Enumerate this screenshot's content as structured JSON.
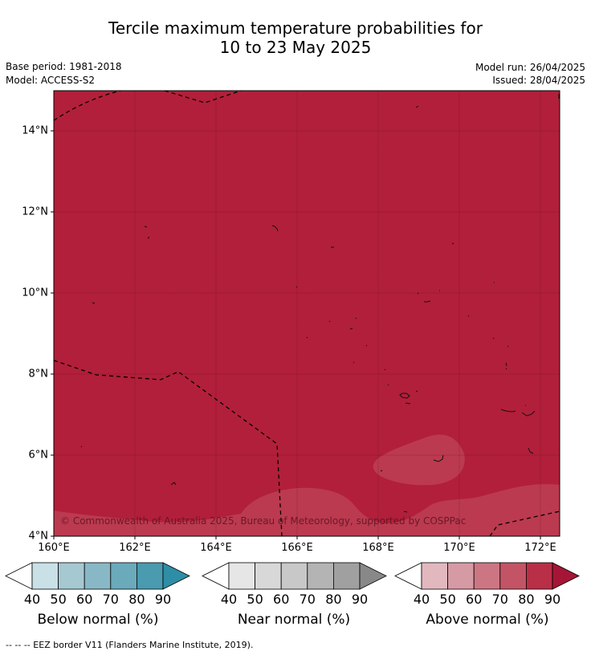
{
  "header": {
    "title_line1": "Tercile maximum temperature probabilities for",
    "title_line2": "10 to 23 May 2025",
    "base_period": "Base period: 1981-2018",
    "model": "Model: ACCESS-S2",
    "model_run": "Model run: 26/04/2025",
    "issued": "Issued: 28/04/2025"
  },
  "map": {
    "y_ticks": [
      "14°N",
      "12°N",
      "10°N",
      "8°N",
      "6°N",
      "4°N"
    ],
    "x_ticks": [
      "160°E",
      "162°E",
      "164°E",
      "166°E",
      "168°E",
      "170°E",
      "172°E"
    ],
    "copyright": "© Commonwealth of Australia 2025, Bureau of Meteorology, supported by COSPPac",
    "fill_color": "#b21f3a",
    "lighter_color": "#bb3a50"
  },
  "colorbars": [
    {
      "label": "Below normal (%)",
      "ticks": [
        "40",
        "50",
        "60",
        "70",
        "80",
        "90"
      ],
      "colors": [
        "#ffffff",
        "#c8e0e6",
        "#a6c8d0",
        "#88b8c6",
        "#6aaabb",
        "#4a9ab0",
        "#2e8ea5"
      ]
    },
    {
      "label": "Near normal (%)",
      "ticks": [
        "40",
        "50",
        "60",
        "70",
        "80",
        "90"
      ],
      "colors": [
        "#ffffff",
        "#e6e6e6",
        "#d8d8d8",
        "#c8c8c8",
        "#b4b4b4",
        "#a0a0a0",
        "#888888"
      ]
    },
    {
      "label": "Above normal (%)",
      "ticks": [
        "40",
        "50",
        "60",
        "70",
        "80",
        "90"
      ],
      "colors": [
        "#ffffff",
        "#e2b8bf",
        "#d69aa4",
        "#cc7683",
        "#c25466",
        "#b92f47",
        "#a51536"
      ]
    }
  ],
  "footer": {
    "legend": "--  --  -- EEZ border V11 (Flanders Marine Institute, 2019)."
  }
}
